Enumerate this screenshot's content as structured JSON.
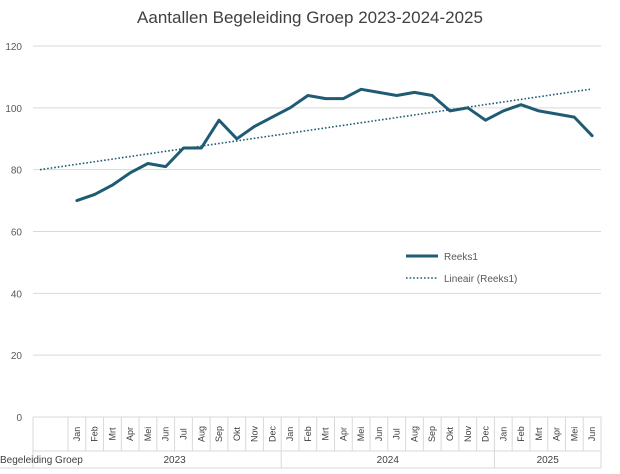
{
  "chart_data": {
    "type": "line",
    "title": "Aantallen Begeleiding Groep 2023-2024-2025",
    "ylim": [
      0,
      120
    ],
    "yticks": [
      0,
      20,
      40,
      60,
      80,
      100,
      120
    ],
    "grid": true,
    "legend_placement": "right-middle",
    "category_group_label": "Begeleiding Groep",
    "year_groups": [
      {
        "label": "2023",
        "months": [
          "Jan",
          "Feb",
          "Mrt",
          "Apr",
          "Mei",
          "Jun",
          "Jul",
          "Aug",
          "Sep",
          "Okt",
          "Nov",
          "Dec"
        ]
      },
      {
        "label": "2024",
        "months": [
          "Jan",
          "Feb",
          "Mrt",
          "Apr",
          "Mei",
          "Jun",
          "Jul",
          "Aug",
          "Sep",
          "Okt",
          "Nov",
          "Dec"
        ]
      },
      {
        "label": "2025",
        "months": [
          "Jan",
          "Feb",
          "Mrt",
          "Apr",
          "Mei",
          "Jun"
        ]
      }
    ],
    "series": [
      {
        "name": "Reeks1",
        "color": "#1f5c73",
        "values": [
          70,
          72,
          75,
          79,
          82,
          81,
          87,
          87,
          96,
          90,
          94,
          97,
          100,
          104,
          103,
          103,
          106,
          105,
          104,
          105,
          104,
          99,
          100,
          96,
          99,
          101,
          99,
          98,
          97,
          91
        ]
      }
    ],
    "trendline": {
      "name": "Lineair (Reeks1)",
      "color": "#1f5c73",
      "start_value": 80,
      "end_value": 106
    }
  }
}
